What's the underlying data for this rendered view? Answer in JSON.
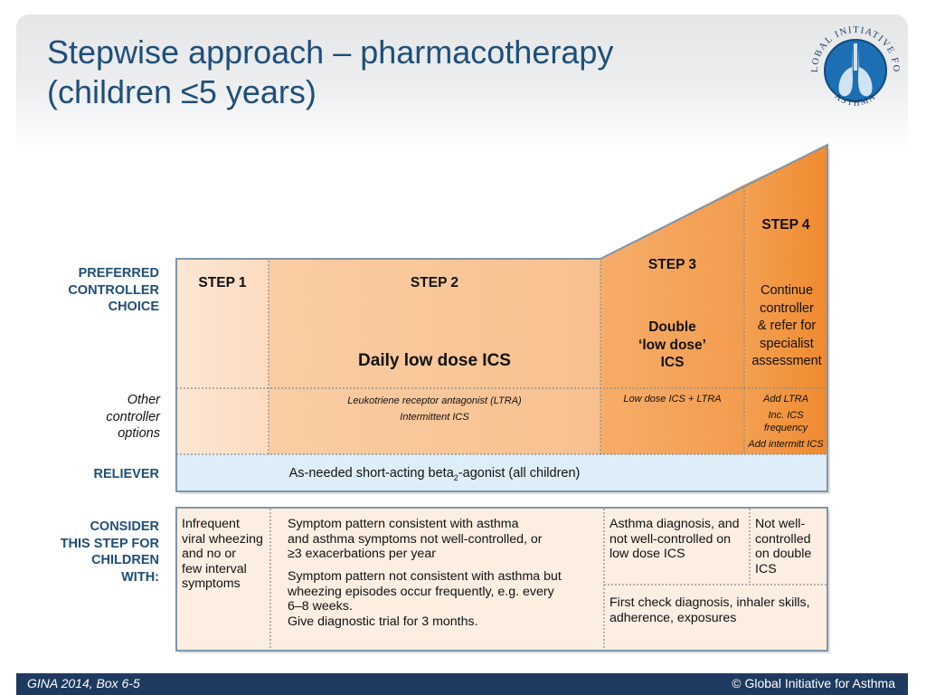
{
  "title": {
    "line1": "Stepwise approach – pharmacotherapy",
    "line2": "(children ≤5 years)"
  },
  "logo": {
    "text_top": "GLOBAL INITIATIVE FOR",
    "text_bottom": "ASTHMA"
  },
  "row_labels": {
    "preferred": [
      "PREFERRED",
      "CONTROLLER",
      "CHOICE"
    ],
    "other": [
      "Other",
      "controller",
      "options"
    ],
    "reliever": "RELIEVER",
    "consider": [
      "CONSIDER",
      "THIS STEP FOR",
      "CHILDREN",
      "WITH:"
    ]
  },
  "steps": {
    "step1": "STEP 1",
    "step2": "STEP 2",
    "step3": "STEP 3",
    "step4": "STEP 4"
  },
  "preferred": {
    "step2": "Daily low dose ICS",
    "step3": [
      "Double",
      "‘low dose’",
      "ICS"
    ],
    "step4": [
      "Continue",
      "controller",
      "& refer for",
      "specialist",
      "assessment"
    ]
  },
  "other_options": {
    "step2": [
      "Leukotriene receptor antagonist (LTRA)",
      "Intermittent ICS"
    ],
    "step3": "Low dose ICS + LTRA",
    "step4": [
      "Add LTRA",
      "Inc. ICS",
      "frequency",
      "Add intermitt ICS"
    ]
  },
  "reliever": {
    "pre": "As-needed short-acting beta",
    "sub": "2",
    "post": "-agonist (all children)"
  },
  "consider": {
    "step1": [
      "Infrequent",
      "viral wheezing",
      "and no or",
      "few interval",
      "symptoms"
    ],
    "step2_a": [
      "Symptom pattern consistent with asthma",
      "and asthma symptoms not well-controlled, or",
      "≥3 exacerbations per year"
    ],
    "step2_b": [
      "Symptom pattern not consistent with asthma but",
      "wheezing episodes occur frequently, e.g. every",
      "6–8 weeks.",
      "Give diagnostic trial for 3 months."
    ],
    "step3": [
      "Asthma diagnosis, and",
      "not well-controlled on",
      "low dose ICS"
    ],
    "step4": [
      "Not well-",
      "controlled",
      "on double",
      "ICS"
    ],
    "step34_bottom": [
      "First check diagnosis, inhaler skills,",
      "adherence, exposures"
    ]
  },
  "footer": {
    "left": "GINA 2014, Box 6-5",
    "right": "© Global Initiative for Asthma"
  },
  "colors": {
    "title": "#1f4e79",
    "step1_fill": "#fce4cf",
    "step2_fill": "#f9c79a",
    "step3_fill": "#f5a35b",
    "step4_fill": "#f28f37",
    "reliever_fill": "#ddeef8",
    "consider_fill": "#fdeee2",
    "border": "#8ea3b5",
    "footer": "#1f3a5f"
  }
}
